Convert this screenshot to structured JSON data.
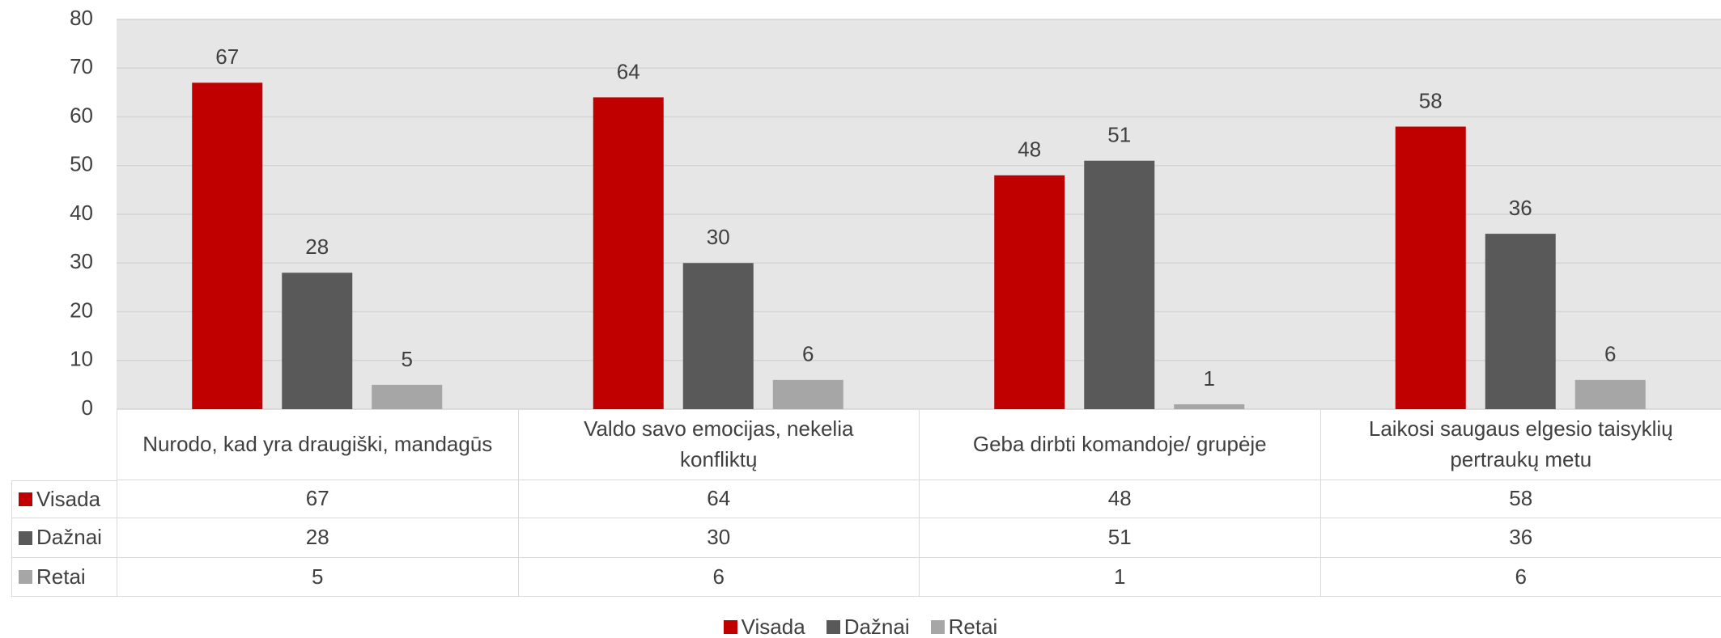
{
  "chart_data": {
    "type": "bar",
    "categories": [
      "Nurodo, kad yra draugiški, mandagūs",
      "Valdo savo emocijas, nekelia konfliktų",
      "Geba dirbti komandoje/ grupėje",
      "Laikosi saugaus elgesio taisyklių pertraukų metu"
    ],
    "series": [
      {
        "name": "Visada",
        "color": "#c00000",
        "values": [
          67,
          64,
          48,
          58
        ]
      },
      {
        "name": "Dažnai",
        "color": "#595959",
        "values": [
          28,
          30,
          51,
          36
        ]
      },
      {
        "name": "Retai",
        "color": "#a6a6a6",
        "values": [
          5,
          6,
          1,
          6
        ]
      }
    ],
    "ylim": [
      0,
      80
    ],
    "yticks": [
      0,
      10,
      20,
      30,
      40,
      50,
      60,
      70,
      80
    ],
    "grid": true,
    "legend": "bottom",
    "data_table": true
  }
}
